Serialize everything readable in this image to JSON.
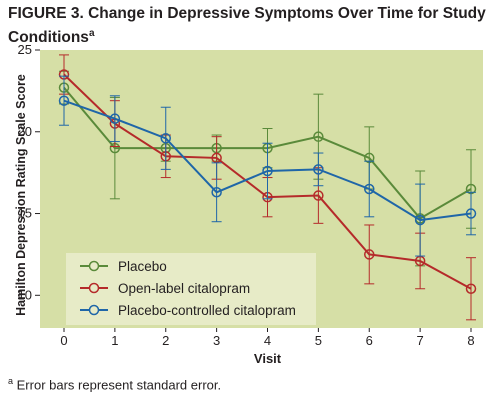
{
  "figure": {
    "title": "FIGURE 3.  Change in Depressive Symptoms Over Time for Study Conditions",
    "title_superscript": "a",
    "footnote_marker": "a",
    "footnote": "Error bars represent standard error."
  },
  "chart_data": {
    "type": "line",
    "xlabel": "Visit",
    "ylabel": "Hamilton Depression Rating Scale Score",
    "x": [
      0,
      1,
      2,
      3,
      4,
      5,
      6,
      7,
      8
    ],
    "x_tick_labels": [
      "0",
      "1",
      "2",
      "3",
      "4",
      "5",
      "6",
      "7",
      "8"
    ],
    "xlim": [
      0,
      8
    ],
    "ylim": [
      8,
      25
    ],
    "y_ticks": [
      10,
      15,
      20,
      25
    ],
    "y_tick_labels": [
      "10",
      "15",
      "20",
      "25"
    ],
    "grid": false,
    "legend_position": "bottom-left",
    "plot_background": "#d6dfa6",
    "legend_background": "#e7ebc7",
    "series": [
      {
        "name": "Placebo",
        "color": "#5a8a3a",
        "values": [
          22.7,
          19.0,
          19.0,
          19.0,
          19.0,
          19.7,
          18.4,
          14.7,
          16.5
        ],
        "errors": [
          1.0,
          3.1,
          0.8,
          0.8,
          1.2,
          2.6,
          1.9,
          2.9,
          2.4
        ]
      },
      {
        "name": "Open-label citalopram",
        "color": "#b52a2a",
        "values": [
          23.5,
          20.5,
          18.5,
          18.4,
          16.0,
          16.1,
          12.5,
          12.1,
          10.4
        ],
        "errors": [
          1.2,
          1.4,
          1.3,
          1.3,
          1.2,
          1.7,
          1.8,
          1.7,
          1.9
        ]
      },
      {
        "name": "Placebo-controlled citalopram",
        "color": "#1f66a8",
        "values": [
          21.9,
          20.8,
          19.6,
          16.3,
          17.6,
          17.7,
          16.5,
          14.6,
          15.0
        ],
        "errors": [
          1.5,
          1.4,
          1.9,
          1.8,
          1.7,
          1.0,
          1.7,
          2.2,
          1.3
        ]
      }
    ]
  }
}
